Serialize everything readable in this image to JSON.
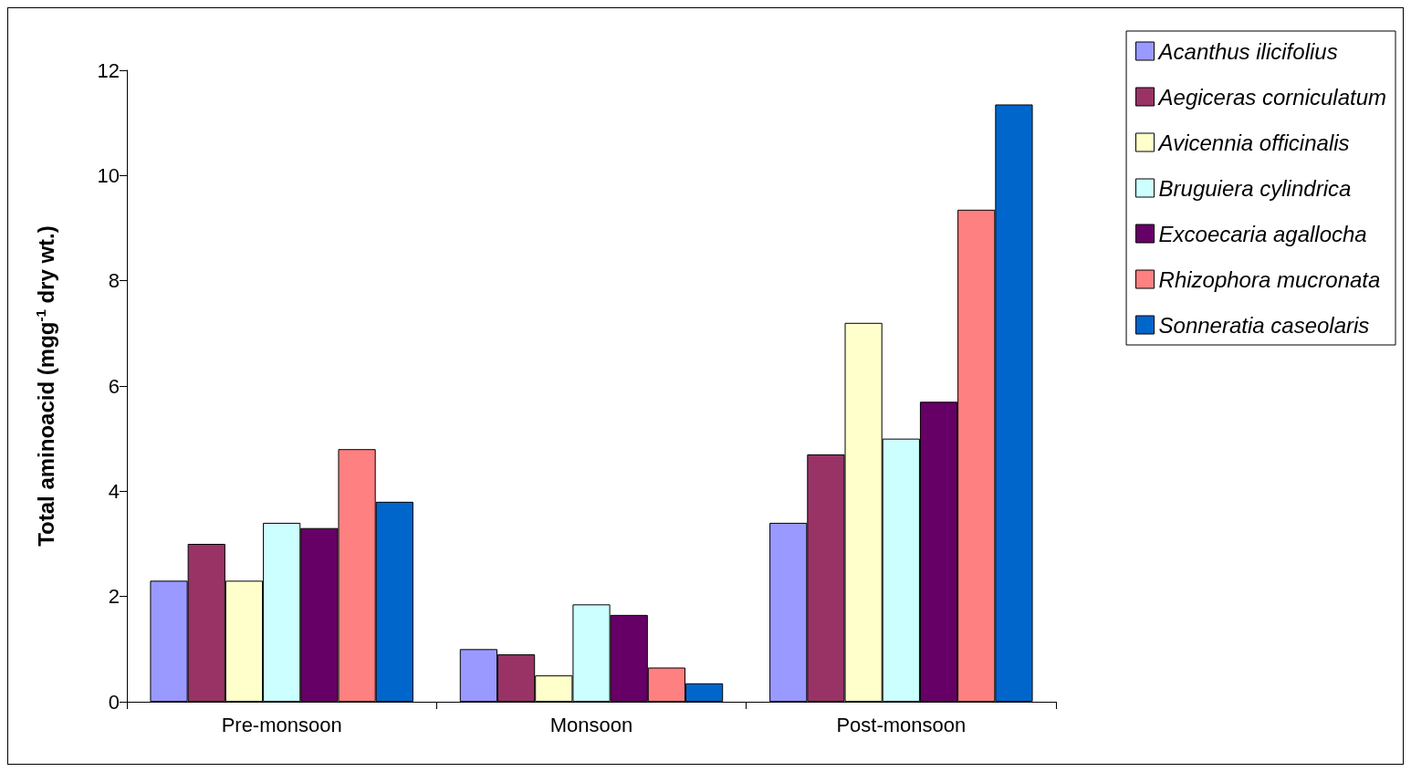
{
  "chart_data": {
    "type": "bar",
    "ylabel": "Total aminoacid (mgg$^{-1}$ dry wt.)",
    "categories": [
      "Pre-monsoon",
      "Monsoon",
      "Post-monsoon"
    ],
    "series": [
      {
        "name": "Acanthus ilicifolius",
        "color": "#9999ff",
        "values": [
          2.3,
          1.0,
          3.4
        ]
      },
      {
        "name": "Aegiceras corniculatum",
        "color": "#993366",
        "values": [
          3.0,
          0.9,
          4.7
        ]
      },
      {
        "name": "Avicennia officinalis",
        "color": "#ffffcc",
        "values": [
          2.3,
          0.5,
          7.2
        ]
      },
      {
        "name": "Bruguiera cylindrica",
        "color": "#ccffff",
        "values": [
          3.4,
          1.85,
          5.0
        ]
      },
      {
        "name": "Excoecaria agallocha",
        "color": "#660066",
        "values": [
          3.3,
          1.65,
          5.7
        ]
      },
      {
        "name": "Rhizophora mucronata",
        "color": "#ff8080",
        "values": [
          4.8,
          0.65,
          9.35
        ]
      },
      {
        "name": "Sonneratia caseolaris",
        "color": "#0066cc",
        "values": [
          3.8,
          0.35,
          11.35
        ]
      }
    ],
    "ylim": [
      0,
      12
    ],
    "yticks": [
      0,
      2,
      4,
      6,
      8,
      10,
      12
    ],
    "grid": false,
    "legend": "top right"
  }
}
